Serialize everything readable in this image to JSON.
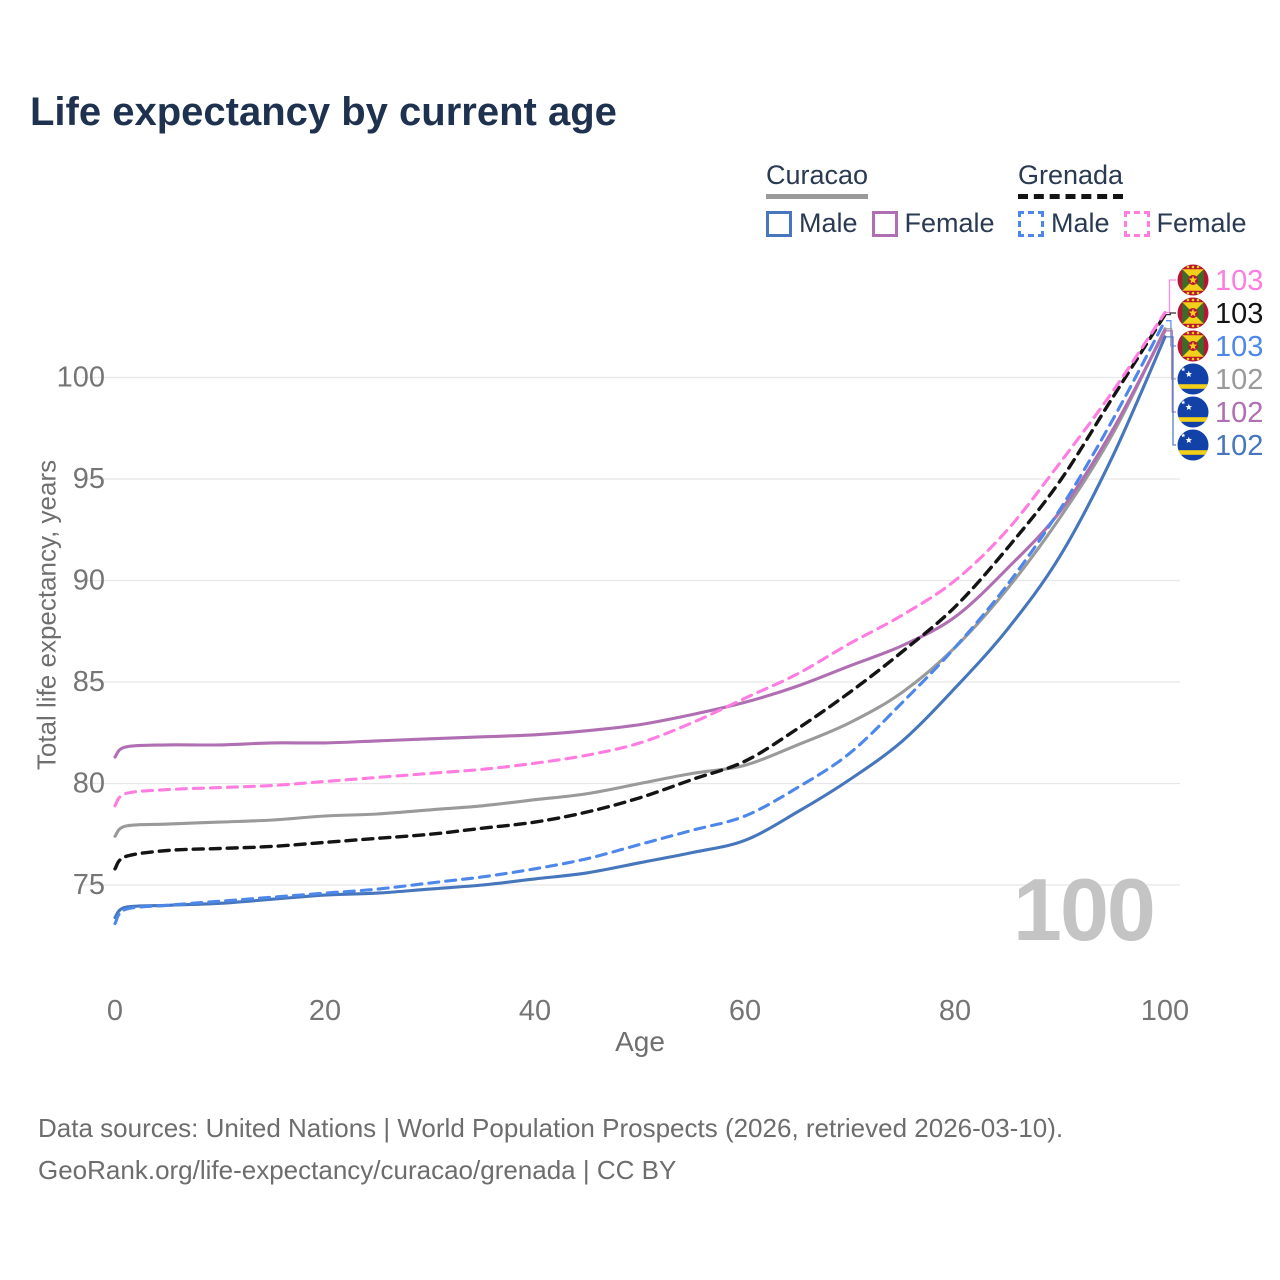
{
  "title": "Life expectancy by current age",
  "legend": {
    "groups": [
      {
        "label": "Curacao",
        "line_style": "solid",
        "underline_color": "#9a9a9a",
        "items": [
          {
            "label": "Male",
            "color": "#4676bc",
            "dashed": false
          },
          {
            "label": "Female",
            "color": "#b06fb2",
            "dashed": false
          }
        ]
      },
      {
        "label": "Grenada",
        "line_style": "dashed",
        "underline_color": "#141414",
        "items": [
          {
            "label": "Male",
            "color": "#4e87ea",
            "dashed": true
          },
          {
            "label": "Female",
            "color": "#ff7ce0",
            "dashed": true
          }
        ]
      }
    ]
  },
  "watermark": "100",
  "footer": {
    "line1": "Data sources: United Nations | World Population Prospects (2026, retrieved 2026-03-10).",
    "line2": "GeoRank.org/life-expectancy/curacao/grenada | CC BY"
  },
  "colors": {
    "title_text": "#1e3250",
    "axis_text": "#757575",
    "grid": "#e7e7e7",
    "watermark": "#c4c4c4",
    "footer_text": "#6d6d6d",
    "legend_text": "#293a52"
  },
  "chart_data": {
    "type": "line",
    "title": "Life expectancy by current age",
    "xlabel": "Age",
    "ylabel": "Total life expectancy, years",
    "xlim": [
      0,
      100
    ],
    "ylim": [
      73,
      104
    ],
    "xticks": [
      0,
      20,
      40,
      60,
      80,
      100
    ],
    "yticks": [
      75,
      80,
      85,
      90,
      95,
      100
    ],
    "grid": "horizontal",
    "legend_position": "top-right",
    "x": [
      0,
      1,
      5,
      10,
      15,
      20,
      25,
      30,
      35,
      40,
      45,
      50,
      55,
      60,
      65,
      70,
      75,
      80,
      85,
      90,
      95,
      100
    ],
    "series": [
      {
        "name": "Curacao Male",
        "country": "Curacao",
        "sex": "Male",
        "color": "#4676bc",
        "dashed": false,
        "flag": "curacao",
        "end_label": "102",
        "values": [
          73.4,
          73.9,
          74.0,
          74.1,
          74.3,
          74.5,
          74.6,
          74.8,
          75.0,
          75.3,
          75.6,
          76.1,
          76.6,
          77.2,
          78.6,
          80.2,
          82.1,
          84.7,
          87.6,
          91.2,
          96.1,
          102.0
        ]
      },
      {
        "name": "Curacao Total",
        "country": "Curacao",
        "sex": "Total",
        "color": "#9a9a9a",
        "dashed": false,
        "flag": "curacao",
        "end_label": "102",
        "values": [
          77.4,
          77.9,
          78.0,
          78.1,
          78.2,
          78.4,
          78.5,
          78.7,
          78.9,
          79.2,
          79.5,
          80.0,
          80.5,
          80.9,
          81.9,
          83.0,
          84.5,
          86.7,
          89.6,
          93.1,
          97.2,
          102.4
        ]
      },
      {
        "name": "Curacao Female",
        "country": "Curacao",
        "sex": "Female",
        "color": "#b06fb2",
        "dashed": false,
        "flag": "curacao",
        "end_label": "102",
        "values": [
          81.3,
          81.8,
          81.9,
          81.9,
          82.0,
          82.0,
          82.1,
          82.2,
          82.3,
          82.4,
          82.6,
          82.9,
          83.4,
          84.0,
          84.8,
          85.8,
          86.8,
          88.2,
          90.6,
          93.4,
          97.4,
          102.3
        ]
      },
      {
        "name": "Grenada Male",
        "country": "Grenada",
        "sex": "Male",
        "color": "#4e87ea",
        "dashed": true,
        "flag": "grenada",
        "end_label": "103",
        "values": [
          73.1,
          73.8,
          74.0,
          74.2,
          74.4,
          74.6,
          74.8,
          75.1,
          75.4,
          75.8,
          76.3,
          77.0,
          77.7,
          78.4,
          79.8,
          81.5,
          84.0,
          86.7,
          89.8,
          93.5,
          97.9,
          102.8
        ]
      },
      {
        "name": "Grenada Total",
        "country": "Grenada",
        "sex": "Total",
        "color": "#141414",
        "dashed": true,
        "flag": "grenada",
        "end_label": "103",
        "values": [
          75.8,
          76.4,
          76.7,
          76.8,
          76.9,
          77.1,
          77.3,
          77.5,
          77.8,
          78.1,
          78.6,
          79.3,
          80.2,
          81.1,
          82.7,
          84.5,
          86.5,
          88.7,
          91.6,
          94.9,
          99.0,
          103.1
        ]
      },
      {
        "name": "Grenada Female",
        "country": "Grenada",
        "sex": "Female",
        "color": "#ff7ce0",
        "dashed": true,
        "flag": "grenada",
        "end_label": "103",
        "values": [
          78.9,
          79.5,
          79.7,
          79.8,
          79.9,
          80.1,
          80.3,
          80.5,
          80.7,
          81.0,
          81.4,
          82.0,
          83.0,
          84.2,
          85.4,
          86.9,
          88.3,
          90.0,
          92.5,
          95.8,
          99.3,
          103.2
        ]
      }
    ],
    "end_label_order": [
      "Grenada Female",
      "Grenada Total",
      "Grenada Male",
      "Curacao Total",
      "Curacao Female",
      "Curacao Male"
    ]
  }
}
